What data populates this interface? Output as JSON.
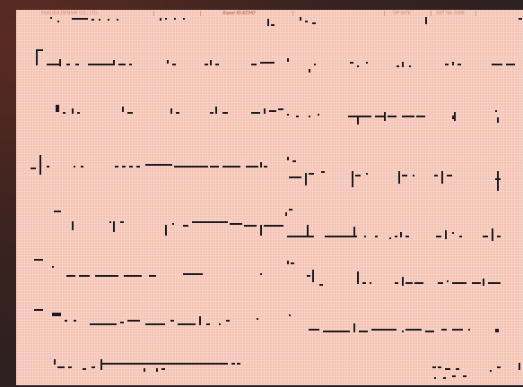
{
  "header": {
    "manufacturer": "FUKUDA DENSHI CO., LTD.",
    "model": "Super ID-ECHO",
    "option": "OP-SITE",
    "serial": "SRT No. 5988"
  },
  "colors": {
    "paper": "#f4c4b4",
    "ink": "#1a1a22",
    "header_text": "#d08a7a",
    "background": "#2b1f1f"
  }
}
